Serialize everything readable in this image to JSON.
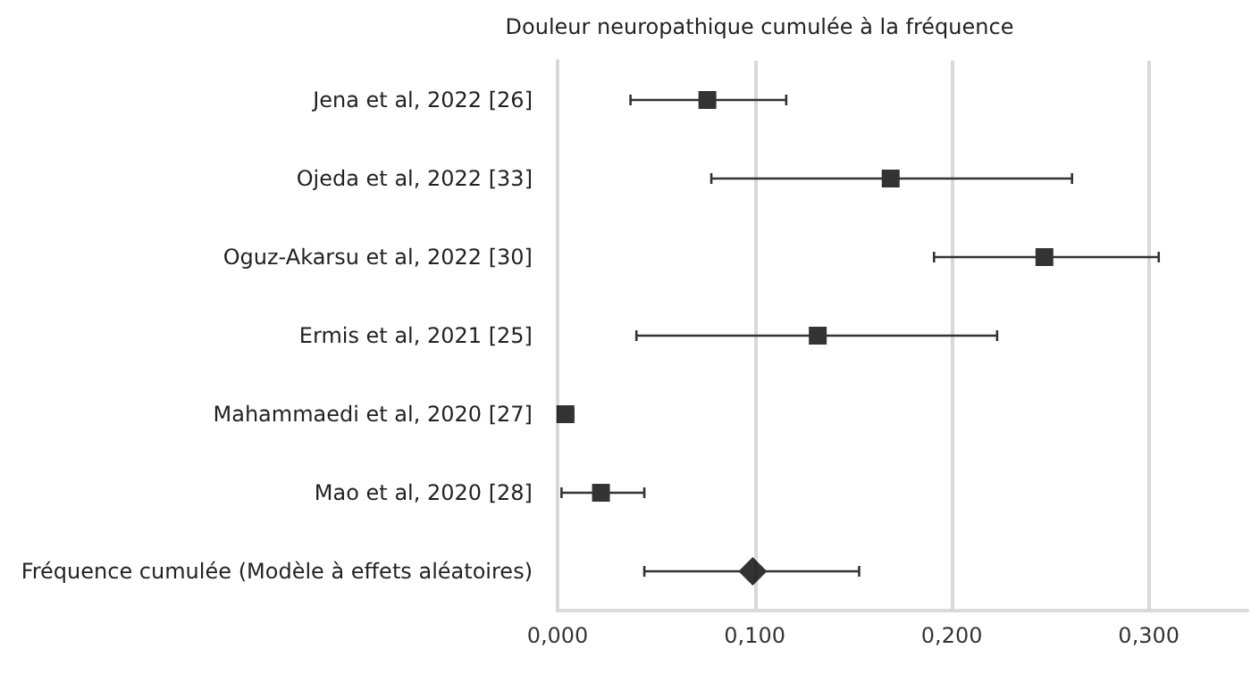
{
  "chart_data": {
    "type": "scatter",
    "orientation": "horizontal",
    "title": "Douleur neuropathique cumulée à la fréquence",
    "categories": [
      "Jena et al, 2022 [26]",
      "Ojeda et al, 2022 [33]",
      "Oguz-Akarsu et al, 2022 [30]",
      "Ermis et al, 2021 [25]",
      "Mahammaedi et al, 2020 [27]",
      "Mao et al, 2020 [28]",
      "Fréquence cumulée (Modèle à effets aléatoires)"
    ],
    "series": [
      {
        "color": "#000000",
        "marker": "square",
        "values": [
          0.076,
          0.169,
          0.247,
          0.132,
          0.004,
          0.022,
          null
        ],
        "errors": [
          [
            0.037,
            0.116
          ],
          [
            0.078,
            0.261
          ],
          [
            0.191,
            0.305
          ],
          [
            0.04,
            0.223
          ],
          [
            0.001,
            0.008
          ],
          [
            0.002,
            0.044
          ],
          null
        ]
      },
      {
        "color": "#000000",
        "marker": "diamond",
        "values": [
          null,
          null,
          null,
          null,
          null,
          null,
          0.099
        ],
        "errors": [
          null,
          null,
          null,
          null,
          null,
          null,
          [
            0.044,
            0.153
          ]
        ]
      }
    ],
    "xlim": [
      0,
      0.35
    ],
    "xticks": [
      {
        "value": 0,
        "label": "0,000"
      },
      {
        "value": 0.1,
        "label": "0,100"
      },
      {
        "value": 0.2,
        "label": "0,200"
      },
      {
        "value": 0.3,
        "label": "0,300"
      }
    ],
    "grid": "x"
  }
}
